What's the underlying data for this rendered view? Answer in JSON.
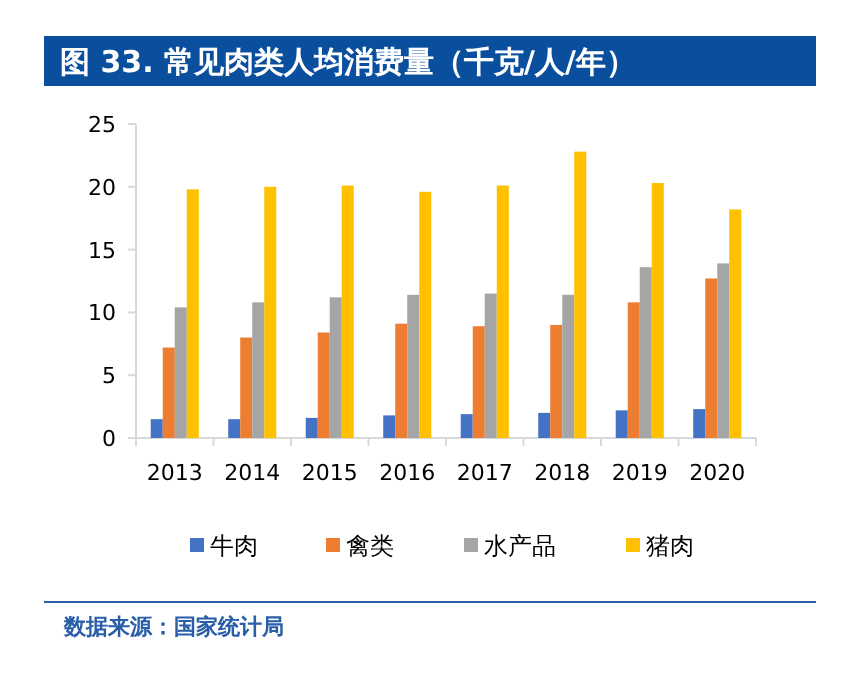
{
  "chart_data": {
    "type": "bar",
    "title": "图 33. 常见肉类人均消费量（千克/人/年）",
    "categories": [
      "2013",
      "2014",
      "2015",
      "2016",
      "2017",
      "2018",
      "2019",
      "2020"
    ],
    "series": [
      {
        "name": "牛肉",
        "color": "#4472c4",
        "values": [
          1.5,
          1.5,
          1.6,
          1.8,
          1.9,
          2.0,
          2.2,
          2.3
        ]
      },
      {
        "name": "禽类",
        "color": "#ed7d31",
        "values": [
          7.2,
          8.0,
          8.4,
          9.1,
          8.9,
          9.0,
          10.8,
          12.7
        ]
      },
      {
        "name": "水产品",
        "color": "#a5a5a5",
        "values": [
          10.4,
          10.8,
          11.2,
          11.4,
          11.5,
          11.4,
          13.6,
          13.9
        ]
      },
      {
        "name": "猪肉",
        "color": "#ffc000",
        "values": [
          19.8,
          20.0,
          20.1,
          19.6,
          20.1,
          22.8,
          20.3,
          18.2
        ]
      }
    ],
    "ylim": [
      0,
      25
    ],
    "yticks": [
      0,
      5,
      10,
      15,
      20,
      25
    ],
    "grid": false,
    "legend": "bottom",
    "annotations": [
      "数据来源：国家统计局"
    ]
  }
}
